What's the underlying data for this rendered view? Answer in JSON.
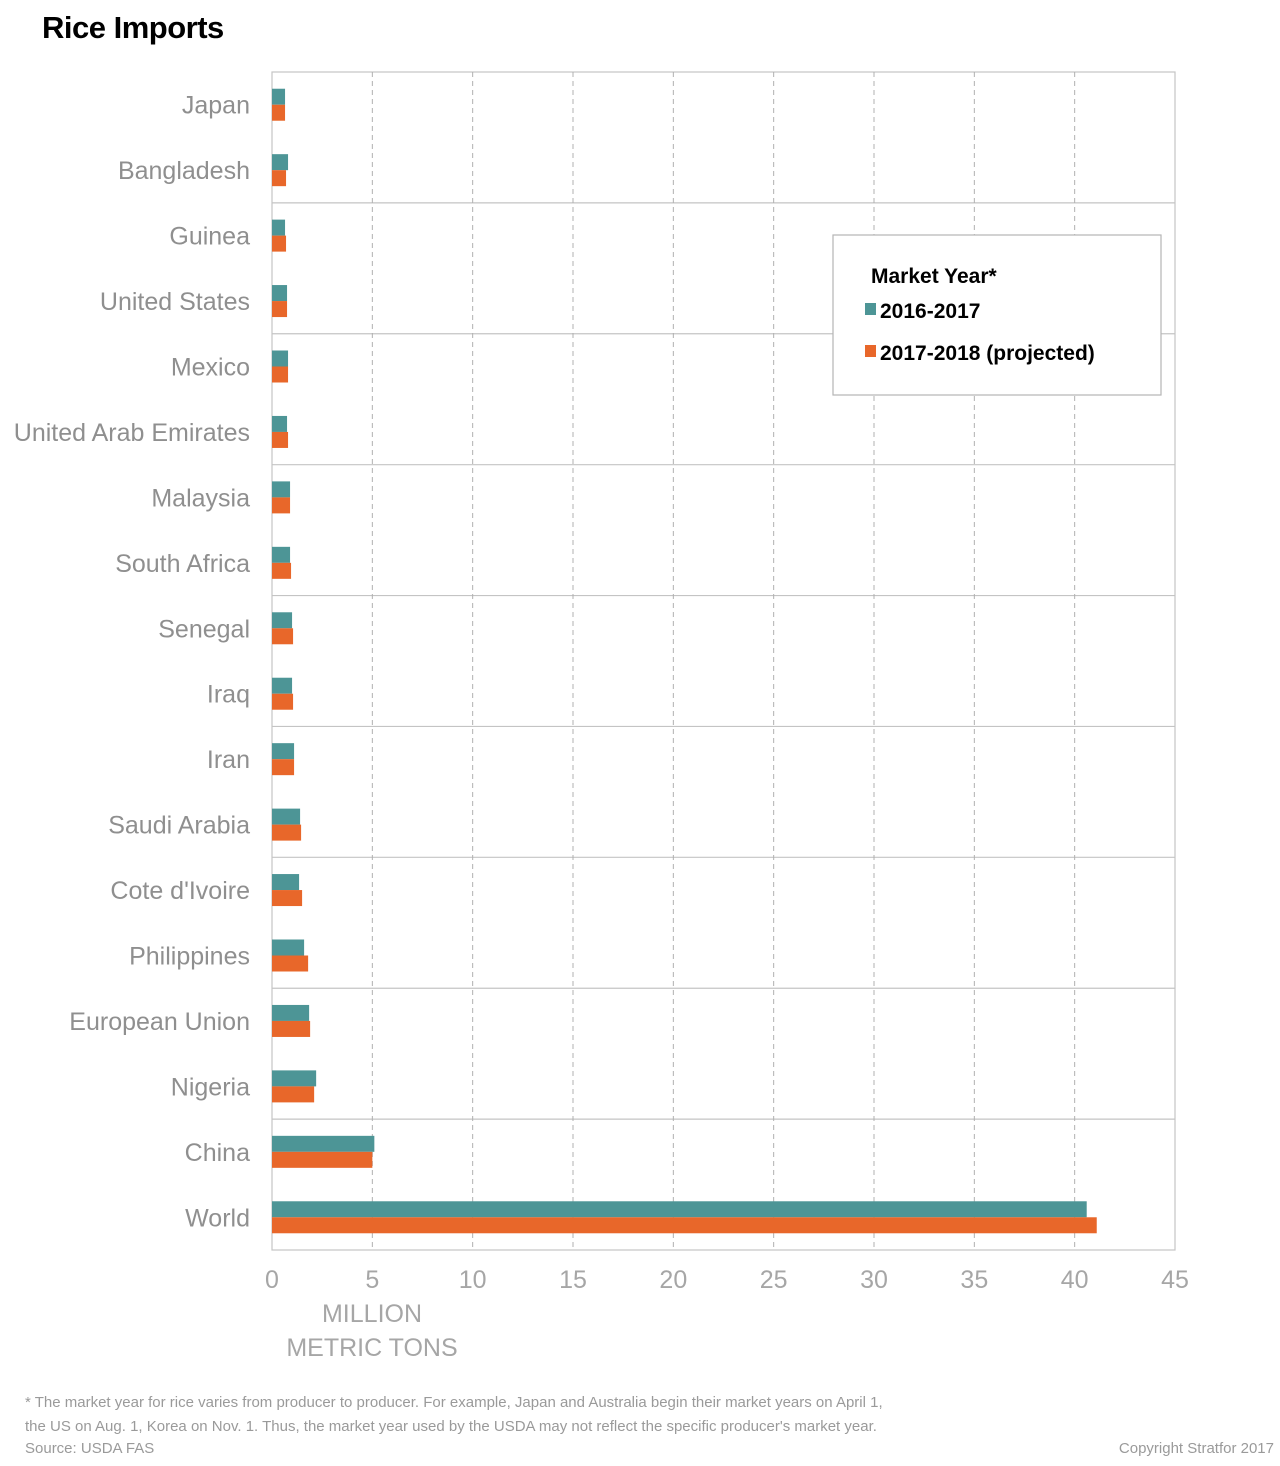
{
  "title": "Rice Imports",
  "chart_data": {
    "type": "bar",
    "orientation": "horizontal",
    "categories": [
      "Japan",
      "Bangladesh",
      "Guinea",
      "United States",
      "Mexico",
      "United Arab Emirates",
      "Malaysia",
      "South Africa",
      "Senegal",
      "Iraq",
      "Iran",
      "Saudi Arabia",
      "Cote d'Ivoire",
      "Philippines",
      "European Union",
      "Nigeria",
      "China",
      "World"
    ],
    "series": [
      {
        "name": "2016-2017",
        "color": "#4d9596",
        "values": [
          0.65,
          0.8,
          0.65,
          0.75,
          0.8,
          0.75,
          0.9,
          0.9,
          1.0,
          1.0,
          1.1,
          1.4,
          1.35,
          1.6,
          1.85,
          2.2,
          5.1,
          40.6
        ]
      },
      {
        "name": "2017-2018 (projected)",
        "color": "#e8672a",
        "values": [
          0.65,
          0.7,
          0.7,
          0.75,
          0.8,
          0.8,
          0.9,
          0.95,
          1.05,
          1.05,
          1.1,
          1.45,
          1.5,
          1.8,
          1.9,
          2.1,
          5.0,
          41.1
        ]
      }
    ],
    "xticks": [
      "0",
      "5",
      "10",
      "15",
      "20",
      "25",
      "30",
      "35",
      "40",
      "45"
    ],
    "xlim": [
      0,
      45
    ],
    "xlabel_line1": "MILLION",
    "xlabel_line2": "METRIC TONS",
    "legend_title": "Market Year*",
    "legend_placement": "top-right",
    "grid": "vertical dashed"
  },
  "footnote_line1": "* The market year for rice varies from producer to producer. For example, Japan and Australia begin their market years on April 1,",
  "footnote_line2": "the US on Aug. 1, Korea on Nov. 1. Thus, the market year used by the USDA may not reflect the specific producer's market year.",
  "source": "Source: USDA FAS",
  "copyright": "Copyright Stratfor 2017"
}
